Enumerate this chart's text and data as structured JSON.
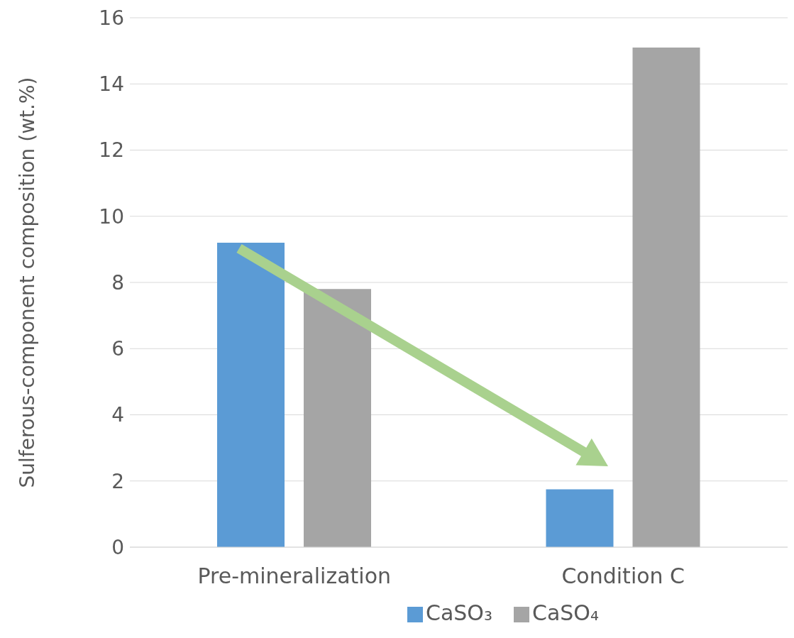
{
  "chart_data": {
    "type": "bar",
    "ylabel": "Sulferous-component  composition (wt.%)",
    "categories": [
      "Pre-mineralization",
      "Condition C"
    ],
    "series": [
      {
        "name": "CaSO₃",
        "color": "#5b9bd5",
        "values": [
          9.2,
          1.75
        ]
      },
      {
        "name": "CaSO₄",
        "color": "#a5a5a5",
        "values": [
          7.8,
          15.1
        ]
      }
    ],
    "ylim": [
      0,
      16
    ],
    "yticks": [
      0,
      2,
      4,
      6,
      8,
      10,
      12,
      14,
      16
    ],
    "grid": "y",
    "legend": "bottom"
  }
}
